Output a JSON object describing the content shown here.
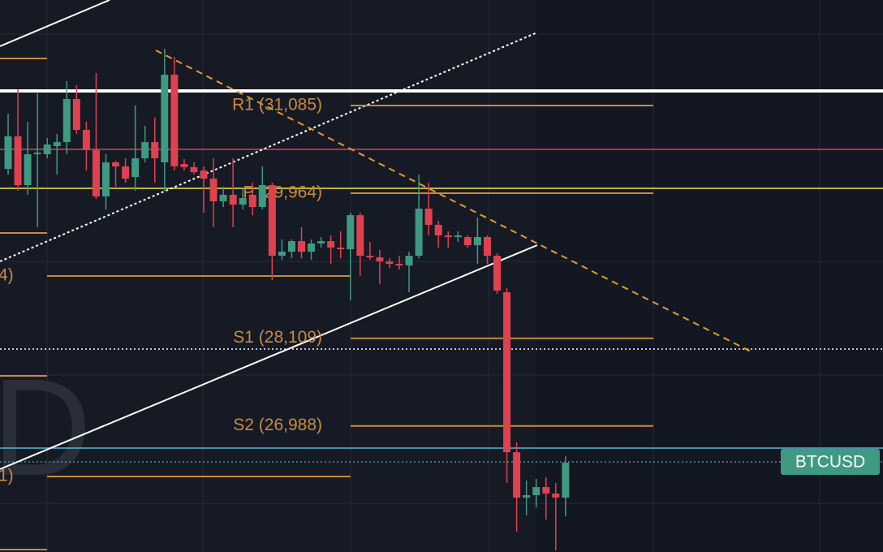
{
  "chart_data": {
    "type": "candlestick",
    "ylim": [
      25376,
      32434
    ],
    "up_color": "#3f9a82",
    "down_color": "#e0414f",
    "open": [
      30275,
      30690,
      30067,
      30462,
      30462,
      30566,
      30617,
      31168,
      30773,
      30514,
      29922,
      30358,
      30306,
      30171,
      30410,
      30617,
      30358,
      31479,
      30337,
      30296,
      30254,
      30150,
      29860,
      29943,
      29818,
      29943,
      29787,
      30067,
      29164,
      29216,
      29351,
      29216,
      29320,
      29351,
      29268,
      29247,
      29683,
      29164,
      29144,
      29092,
      29060,
      29040,
      29164,
      29766,
      29559,
      29424,
      29403,
      29403,
      29299,
      29403,
      29164,
      28697,
      26652,
      26071,
      26102,
      26206,
      26123,
      26071
    ],
    "high": [
      30981,
      31292,
      30877,
      31240,
      30669,
      30721,
      31396,
      31344,
      30877,
      31500,
      30462,
      30379,
      30410,
      31085,
      30825,
      30929,
      31811,
      31707,
      30400,
      30358,
      30306,
      30410,
      30047,
      30410,
      30026,
      30098,
      30306,
      30098,
      29372,
      29372,
      29528,
      29372,
      29403,
      29424,
      29476,
      29714,
      29714,
      29341,
      29237,
      29133,
      29164,
      29216,
      30202,
      30098,
      29611,
      29476,
      29476,
      29424,
      29652,
      29424,
      29195,
      28749,
      26777,
      26289,
      26310,
      26331,
      26258,
      26600
    ],
    "low": [
      30202,
      29995,
      29943,
      29528,
      30410,
      30202,
      30462,
      30721,
      30254,
      29891,
      29756,
      30047,
      30098,
      29995,
      30358,
      30098,
      29995,
      30254,
      30254,
      30202,
      29714,
      29528,
      29787,
      29528,
      29756,
      29683,
      29756,
      28853,
      29112,
      29133,
      29133,
      29112,
      29268,
      29060,
      29133,
      28593,
      28905,
      29112,
      28801,
      29009,
      28988,
      28697,
      29133,
      29424,
      29268,
      29268,
      29341,
      29268,
      29060,
      29060,
      28676,
      26258,
      25635,
      25843,
      25946,
      25791,
      25396,
      25832
    ],
    "close": [
      30690,
      30067,
      30462,
      30483,
      30586,
      30617,
      31168,
      30773,
      30514,
      29922,
      30358,
      30306,
      30150,
      30410,
      30617,
      30410,
      31479,
      30306,
      30296,
      30233,
      30150,
      29860,
      29943,
      29818,
      29901,
      29787,
      30067,
      29164,
      29216,
      29351,
      29216,
      29320,
      29351,
      29268,
      29247,
      29683,
      29164,
      29144,
      29092,
      29060,
      29040,
      29164,
      29766,
      29559,
      29424,
      29403,
      29424,
      29299,
      29403,
      29164,
      28718,
      26652,
      26071,
      26102,
      26206,
      26123,
      26071,
      26518
    ],
    "levels": [
      {
        "label": "R1 (31,085)",
        "value": 31085
      },
      {
        "label": "P (29,964)",
        "value": 29964
      },
      {
        "label": "S1 (28,109)",
        "value": 28109
      },
      {
        "label": "S2 (26,988)",
        "value": 26988
      }
    ],
    "level_color": "#c98a3e",
    "hlines": [
      {
        "value": 31271,
        "color": "#ffffff",
        "width": 4,
        "dash": "none"
      },
      {
        "value": 30524,
        "color": "#d9434e",
        "width": 1.5,
        "dash": "none"
      },
      {
        "value": 30026,
        "color": "#f2e34c",
        "width": 1.5,
        "dash": "none"
      },
      {
        "value": 27971,
        "color": "#ffffff",
        "width": 1.5,
        "dash": "2 3"
      },
      {
        "value": 26704,
        "color": "#5cb8d6",
        "width": 1.5,
        "dash": "none"
      },
      {
        "value": 26528,
        "color": "#3f9a82",
        "width": 1.5,
        "dash": "2 3"
      }
    ],
    "price_tag": "BTCUSD",
    "left_labels": [
      "4)",
      "1)"
    ],
    "watermark": "D"
  }
}
